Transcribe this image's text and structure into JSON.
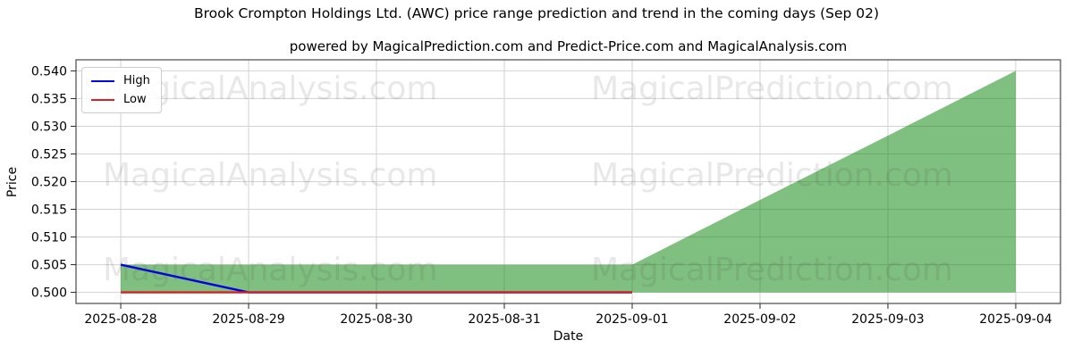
{
  "figure": {
    "title": "Brook Crompton Holdings Ltd. (AWC) price range prediction and trend in the coming days (Sep 02)",
    "subtitle": "powered by MagicalPrediction.com and Predict-Price.com and MagicalAnalysis.com"
  },
  "watermarks": {
    "left": "MagicalAnalysis.com",
    "right": "MagicalPrediction.com",
    "rows": 3
  },
  "chart_data": {
    "type": "line",
    "title": "Brook Crompton Holdings Ltd. (AWC) price range prediction and trend in the coming days (Sep 02)",
    "subtitle": "powered by MagicalPrediction.com and Predict-Price.com and MagicalAnalysis.com",
    "xlabel": "Date",
    "ylabel": "Price",
    "x_tick_labels": [
      "2025-08-28",
      "2025-08-29",
      "2025-08-30",
      "2025-08-31",
      "2025-09-01",
      "2025-09-02",
      "2025-09-03",
      "2025-09-04"
    ],
    "y_ticks": [
      0.5,
      0.505,
      0.51,
      0.515,
      0.52,
      0.525,
      0.53,
      0.535,
      0.54
    ],
    "y_tick_labels": [
      "0.500",
      "0.505",
      "0.510",
      "0.515",
      "0.520",
      "0.525",
      "0.530",
      "0.535",
      "0.540"
    ],
    "ylim": [
      0.498,
      0.542
    ],
    "x_range_days": 7,
    "x_margin_days": 0.35,
    "grid": true,
    "legend_position": "upper left",
    "series": [
      {
        "name": "High",
        "color": "#0000e0",
        "x": [
          0,
          1,
          2,
          3,
          4
        ],
        "values": [
          0.505,
          0.5,
          0.5,
          0.5,
          0.5
        ]
      },
      {
        "name": "Low",
        "color": "#d62222",
        "x": [
          0,
          1,
          2,
          3,
          4
        ],
        "values": [
          0.5,
          0.5,
          0.5,
          0.5,
          0.5
        ]
      }
    ],
    "band": {
      "name": "prediction-range",
      "color": "#008000",
      "opacity": 0.5,
      "x": [
        0,
        1,
        2,
        3,
        4,
        5,
        6,
        7
      ],
      "upper": [
        0.505,
        0.505,
        0.505,
        0.505,
        0.505,
        0.5167,
        0.5283,
        0.54
      ],
      "lower": [
        0.5,
        0.5,
        0.5,
        0.5,
        0.5,
        0.5,
        0.5,
        0.5
      ]
    }
  }
}
